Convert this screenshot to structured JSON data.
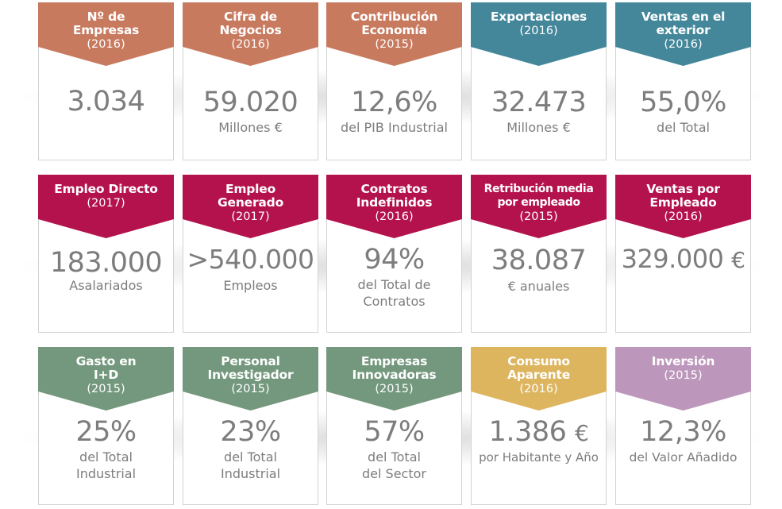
{
  "cards": [
    {
      "title": "Nº de\nEmpresas",
      "year": "(2016)",
      "value": "3.034",
      "unit": "",
      "caption": "",
      "color": "#c87a5f"
    },
    {
      "title": "Cifra de\nNegocios",
      "year": "(2016)",
      "value": "59.020",
      "unit": "",
      "caption": "Millones €",
      "color": "#c87a5f"
    },
    {
      "title": "Contribución\nEconomía",
      "year": "(2015)",
      "value": "12,6%",
      "unit": "",
      "caption": "del PIB Industrial",
      "color": "#c87a5f"
    },
    {
      "title": "Exportaciones",
      "year": "(2016)",
      "value": "32.473",
      "unit": "",
      "caption": "Millones €",
      "color": "#44879a"
    },
    {
      "title": "Ventas en el\nexterior",
      "year": "(2016)",
      "value": "55,0%",
      "unit": "",
      "caption": "del Total",
      "color": "#44879a"
    },
    {
      "title": "Empleo Directo",
      "year": "(2017)",
      "value": "183.000",
      "unit": "",
      "caption": "Asalariados",
      "color": "#b4124d"
    },
    {
      "title": "Empleo\nGenerado",
      "year": "(2017)",
      "value": ">540.000",
      "unit": "",
      "caption": "Empleos",
      "color": "#b4124d"
    },
    {
      "title": "Contratos\nIndefinidos",
      "year": "(2016)",
      "value": "94%",
      "unit": "",
      "caption": "del Total de\nContratos",
      "color": "#b4124d"
    },
    {
      "title": "Retribución media\npor empleado",
      "year": "(2015)",
      "value": "38.087",
      "unit": "",
      "caption": "€ anuales",
      "color": "#b4124d"
    },
    {
      "title": "Ventas por\nEmpleado",
      "year": "(2016)",
      "value": "329.000",
      "unit": "€",
      "caption": "",
      "color": "#b4124d"
    },
    {
      "title": "Gasto en\nI+D",
      "year": "(2015)",
      "value": "25%",
      "unit": "",
      "caption": "del Total\nIndustrial",
      "color": "#73987d"
    },
    {
      "title": "Personal\nInvestigador",
      "year": "(2015)",
      "value": "23%",
      "unit": "",
      "caption": "del Total\nIndustrial",
      "color": "#73987d"
    },
    {
      "title": "Empresas\nInnovadoras",
      "year": "(2015)",
      "value": "57%",
      "unit": "",
      "caption": "del Total\ndel Sector",
      "color": "#73987d"
    },
    {
      "title": "Consumo\nAparente",
      "year": "(2016)",
      "value": "1.386",
      "unit": "€",
      "caption": "por Habitante y Año",
      "color": "#ddb55f"
    },
    {
      "title": "Inversión",
      "year": "(2015)",
      "value": "12,3%",
      "unit": "",
      "caption": "del Valor Añadido",
      "color": "#bc96bb"
    }
  ]
}
